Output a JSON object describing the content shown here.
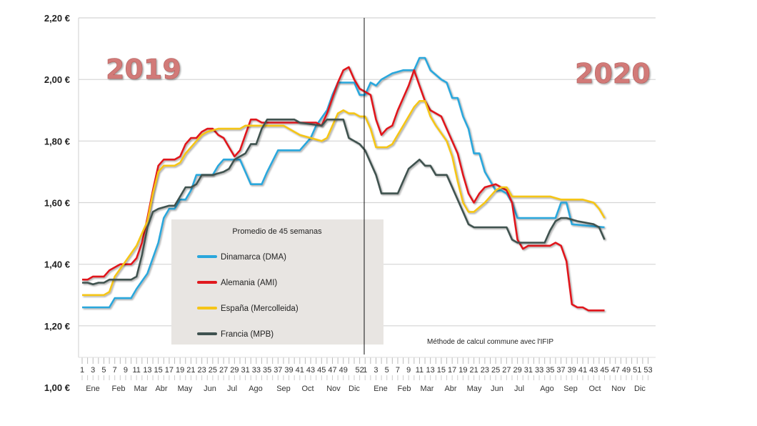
{
  "chart_data": {
    "type": "line",
    "title": "",
    "xlabel": "",
    "ylabel": "",
    "ylim": [
      1.0,
      2.2
    ],
    "y_ticks": [
      "1,00 €",
      "1,20 €",
      "1,40 €",
      "1,60 €",
      "1,80 €",
      "2,00 €",
      "2,20 €"
    ],
    "grid": "horizontal",
    "year_labels": [
      "2019",
      "2020"
    ],
    "x_ticks_2019": [
      "1",
      "3",
      "5",
      "7",
      "9",
      "11",
      "13",
      "15",
      "17",
      "19",
      "21",
      "23",
      "25",
      "27",
      "29",
      "31",
      "33",
      "35",
      "37",
      "39",
      "41",
      "43",
      "45",
      "47",
      "49",
      "52"
    ],
    "x_ticks_2020": [
      "1",
      "3",
      "5",
      "7",
      "9",
      "11",
      "13",
      "15",
      "17",
      "19",
      "21",
      "23",
      "25",
      "27",
      "29",
      "31",
      "33",
      "35",
      "37",
      "39",
      "41",
      "43",
      "45",
      "47",
      "49",
      "51",
      "53"
    ],
    "months": [
      "Ene",
      "Feb",
      "Mar",
      "Abr",
      "May",
      "Jun",
      "Jul",
      "Ago",
      "Sep",
      "Oct",
      "Nov",
      "Dic"
    ],
    "legend": {
      "title": "Promedio de 45 semanas",
      "placement": "center-left"
    },
    "annotation": "Méthode de calcul commune avec l'IFIP",
    "series": [
      {
        "name": "Dinamarca (DMA)",
        "color": "#2aa7dc",
        "2019": [
          [
            1,
            1.26
          ],
          [
            6,
            1.26
          ],
          [
            7,
            1.29
          ],
          [
            10,
            1.29
          ],
          [
            11,
            1.32
          ],
          [
            13,
            1.37
          ],
          [
            15,
            1.47
          ],
          [
            16,
            1.55
          ],
          [
            17,
            1.58
          ],
          [
            18,
            1.58
          ],
          [
            19,
            1.61
          ],
          [
            20,
            1.61
          ],
          [
            21,
            1.64
          ],
          [
            22,
            1.69
          ],
          [
            25,
            1.69
          ],
          [
            26,
            1.72
          ],
          [
            27,
            1.74
          ],
          [
            30,
            1.74
          ],
          [
            31,
            1.7
          ],
          [
            32,
            1.66
          ],
          [
            34,
            1.66
          ],
          [
            35,
            1.7
          ],
          [
            37,
            1.77
          ],
          [
            41,
            1.77
          ],
          [
            43,
            1.81
          ],
          [
            44,
            1.85
          ],
          [
            46,
            1.9
          ],
          [
            47,
            1.95
          ],
          [
            48,
            1.99
          ],
          [
            51,
            1.99
          ],
          [
            52,
            1.95
          ]
        ],
        "2020": [
          [
            1,
            1.95
          ],
          [
            2,
            1.99
          ],
          [
            3,
            1.98
          ],
          [
            4,
            2.0
          ],
          [
            6,
            2.02
          ],
          [
            8,
            2.03
          ],
          [
            10,
            2.03
          ],
          [
            11,
            2.07
          ],
          [
            12,
            2.07
          ],
          [
            13,
            2.03
          ],
          [
            15,
            2.0
          ],
          [
            16,
            1.99
          ],
          [
            17,
            1.94
          ],
          [
            18,
            1.94
          ],
          [
            19,
            1.88
          ],
          [
            20,
            1.84
          ],
          [
            21,
            1.76
          ],
          [
            22,
            1.76
          ],
          [
            23,
            1.7
          ],
          [
            25,
            1.64
          ],
          [
            26,
            1.64
          ],
          [
            27,
            1.63
          ],
          [
            28,
            1.6
          ],
          [
            29,
            1.55
          ],
          [
            36,
            1.55
          ],
          [
            37,
            1.6
          ],
          [
            38,
            1.6
          ],
          [
            39,
            1.53
          ],
          [
            45,
            1.52
          ]
        ]
      },
      {
        "name": "Alemania (AMI)",
        "color": "#e0191e",
        "2019": [
          [
            1,
            1.35
          ],
          [
            2,
            1.35
          ],
          [
            3,
            1.36
          ],
          [
            5,
            1.36
          ],
          [
            6,
            1.38
          ],
          [
            8,
            1.4
          ],
          [
            10,
            1.4
          ],
          [
            11,
            1.42
          ],
          [
            12,
            1.47
          ],
          [
            13,
            1.55
          ],
          [
            14,
            1.64
          ],
          [
            15,
            1.72
          ],
          [
            16,
            1.74
          ],
          [
            18,
            1.74
          ],
          [
            19,
            1.75
          ],
          [
            20,
            1.79
          ],
          [
            21,
            1.81
          ],
          [
            22,
            1.81
          ],
          [
            23,
            1.83
          ],
          [
            24,
            1.84
          ],
          [
            25,
            1.84
          ],
          [
            26,
            1.82
          ],
          [
            27,
            1.81
          ],
          [
            28,
            1.78
          ],
          [
            29,
            1.75
          ],
          [
            30,
            1.77
          ],
          [
            31,
            1.82
          ],
          [
            32,
            1.87
          ],
          [
            33,
            1.87
          ],
          [
            34,
            1.86
          ],
          [
            44,
            1.86
          ],
          [
            45,
            1.85
          ],
          [
            46,
            1.89
          ],
          [
            47,
            1.94
          ],
          [
            48,
            1.99
          ],
          [
            49,
            2.03
          ],
          [
            50,
            2.04
          ],
          [
            51,
            2.0
          ],
          [
            52,
            1.97
          ]
        ],
        "2020": [
          [
            1,
            1.96
          ],
          [
            2,
            1.95
          ],
          [
            3,
            1.87
          ],
          [
            4,
            1.82
          ],
          [
            5,
            1.84
          ],
          [
            6,
            1.85
          ],
          [
            7,
            1.9
          ],
          [
            9,
            1.98
          ],
          [
            10,
            2.03
          ],
          [
            11,
            1.98
          ],
          [
            12,
            1.93
          ],
          [
            13,
            1.9
          ],
          [
            15,
            1.88
          ],
          [
            16,
            1.84
          ],
          [
            18,
            1.76
          ],
          [
            19,
            1.69
          ],
          [
            20,
            1.63
          ],
          [
            21,
            1.6
          ],
          [
            22,
            1.63
          ],
          [
            23,
            1.65
          ],
          [
            25,
            1.66
          ],
          [
            26,
            1.65
          ],
          [
            27,
            1.64
          ],
          [
            28,
            1.6
          ],
          [
            29,
            1.48
          ],
          [
            30,
            1.45
          ],
          [
            31,
            1.46
          ],
          [
            35,
            1.46
          ],
          [
            36,
            1.47
          ],
          [
            37,
            1.46
          ],
          [
            38,
            1.41
          ],
          [
            39,
            1.27
          ],
          [
            40,
            1.26
          ],
          [
            41,
            1.26
          ],
          [
            42,
            1.25
          ],
          [
            45,
            1.25
          ]
        ]
      },
      {
        "name": "España (Mercolleida)",
        "color": "#f5c518",
        "2019": [
          [
            1,
            1.3
          ],
          [
            5,
            1.3
          ],
          [
            6,
            1.31
          ],
          [
            7,
            1.36
          ],
          [
            9,
            1.41
          ],
          [
            11,
            1.46
          ],
          [
            13,
            1.54
          ],
          [
            14,
            1.63
          ],
          [
            15,
            1.7
          ],
          [
            16,
            1.72
          ],
          [
            18,
            1.72
          ],
          [
            19,
            1.73
          ],
          [
            20,
            1.76
          ],
          [
            22,
            1.8
          ],
          [
            23,
            1.82
          ],
          [
            24,
            1.83
          ],
          [
            26,
            1.84
          ],
          [
            30,
            1.84
          ],
          [
            31,
            1.85
          ],
          [
            38,
            1.85
          ],
          [
            39,
            1.84
          ],
          [
            41,
            1.82
          ],
          [
            43,
            1.81
          ],
          [
            45,
            1.8
          ],
          [
            46,
            1.81
          ],
          [
            47,
            1.85
          ],
          [
            48,
            1.89
          ],
          [
            49,
            1.9
          ],
          [
            50,
            1.89
          ],
          [
            51,
            1.89
          ],
          [
            52,
            1.88
          ]
        ],
        "2020": [
          [
            1,
            1.88
          ],
          [
            2,
            1.84
          ],
          [
            3,
            1.78
          ],
          [
            5,
            1.78
          ],
          [
            6,
            1.79
          ],
          [
            8,
            1.85
          ],
          [
            10,
            1.91
          ],
          [
            11,
            1.93
          ],
          [
            12,
            1.93
          ],
          [
            13,
            1.88
          ],
          [
            14,
            1.85
          ],
          [
            16,
            1.8
          ],
          [
            17,
            1.75
          ],
          [
            18,
            1.67
          ],
          [
            19,
            1.6
          ],
          [
            20,
            1.57
          ],
          [
            21,
            1.57
          ],
          [
            23,
            1.6
          ],
          [
            25,
            1.64
          ],
          [
            26,
            1.65
          ],
          [
            27,
            1.65
          ],
          [
            28,
            1.62
          ],
          [
            35,
            1.62
          ],
          [
            37,
            1.61
          ],
          [
            41,
            1.61
          ],
          [
            43,
            1.6
          ],
          [
            44,
            1.58
          ],
          [
            45,
            1.55
          ]
        ]
      },
      {
        "name": "Francia (MPB)",
        "color": "#3f5250",
        "2019": [
          [
            1,
            1.34
          ],
          [
            2,
            1.34
          ],
          [
            3,
            1.335
          ],
          [
            4,
            1.34
          ],
          [
            5,
            1.34
          ],
          [
            6,
            1.35
          ],
          [
            10,
            1.35
          ],
          [
            11,
            1.36
          ],
          [
            12,
            1.43
          ],
          [
            13,
            1.52
          ],
          [
            14,
            1.57
          ],
          [
            15,
            1.58
          ],
          [
            17,
            1.59
          ],
          [
            18,
            1.59
          ],
          [
            19,
            1.62
          ],
          [
            20,
            1.65
          ],
          [
            21,
            1.65
          ],
          [
            22,
            1.66
          ],
          [
            23,
            1.69
          ],
          [
            25,
            1.69
          ],
          [
            27,
            1.7
          ],
          [
            28,
            1.71
          ],
          [
            29,
            1.74
          ],
          [
            30,
            1.75
          ],
          [
            31,
            1.76
          ],
          [
            32,
            1.79
          ],
          [
            33,
            1.79
          ],
          [
            34,
            1.84
          ],
          [
            35,
            1.87
          ],
          [
            40,
            1.87
          ],
          [
            41,
            1.86
          ],
          [
            45,
            1.85
          ],
          [
            46,
            1.87
          ],
          [
            49,
            1.87
          ],
          [
            50,
            1.81
          ],
          [
            52,
            1.79
          ]
        ],
        "2020": [
          [
            1,
            1.77
          ],
          [
            3,
            1.69
          ],
          [
            4,
            1.63
          ],
          [
            7,
            1.63
          ],
          [
            8,
            1.67
          ],
          [
            9,
            1.71
          ],
          [
            11,
            1.74
          ],
          [
            12,
            1.72
          ],
          [
            13,
            1.72
          ],
          [
            14,
            1.69
          ],
          [
            16,
            1.69
          ],
          [
            17,
            1.65
          ],
          [
            19,
            1.57
          ],
          [
            20,
            1.53
          ],
          [
            21,
            1.52
          ],
          [
            27,
            1.52
          ],
          [
            28,
            1.48
          ],
          [
            29,
            1.47
          ],
          [
            34,
            1.47
          ],
          [
            35,
            1.51
          ],
          [
            36,
            1.54
          ],
          [
            37,
            1.55
          ],
          [
            38,
            1.55
          ],
          [
            40,
            1.54
          ],
          [
            43,
            1.53
          ],
          [
            44,
            1.52
          ],
          [
            45,
            1.48
          ]
        ]
      }
    ]
  }
}
